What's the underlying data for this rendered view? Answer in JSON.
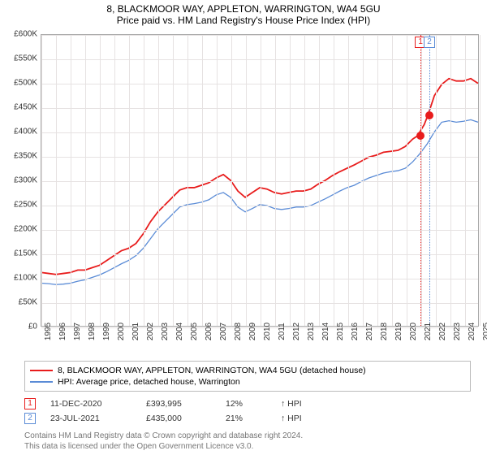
{
  "title": "8, BLACKMOOR WAY, APPLETON, WARRINGTON, WA4 5GU",
  "subtitle": "Price paid vs. HM Land Registry's House Price Index (HPI)",
  "chart": {
    "type": "line",
    "background_color": "#ffffff",
    "grid_color": "#e6e2e2",
    "border_color": "#aaaaaa",
    "title_fontsize": 12,
    "label_fontsize": 10,
    "y": {
      "min": 0,
      "max": 600000,
      "step": 50000,
      "prefix": "£",
      "suffix": "K",
      "divisor": 1000
    },
    "x": {
      "min": 1995,
      "max": 2025,
      "step": 1
    },
    "series": [
      {
        "name": "8, BLACKMOOR WAY, APPLETON, WARRINGTON, WA4 5GU (detached house)",
        "color": "#e81c1c",
        "line_width": 1.8,
        "points": [
          [
            1995,
            110000
          ],
          [
            1995.5,
            108000
          ],
          [
            1996,
            106000
          ],
          [
            1996.5,
            108000
          ],
          [
            1997,
            110000
          ],
          [
            1997.5,
            115000
          ],
          [
            1998,
            115000
          ],
          [
            1998.5,
            120000
          ],
          [
            1999,
            125000
          ],
          [
            1999.5,
            135000
          ],
          [
            2000,
            145000
          ],
          [
            2000.5,
            155000
          ],
          [
            2001,
            160000
          ],
          [
            2001.5,
            170000
          ],
          [
            2002,
            190000
          ],
          [
            2002.5,
            215000
          ],
          [
            2003,
            235000
          ],
          [
            2003.5,
            250000
          ],
          [
            2004,
            265000
          ],
          [
            2004.5,
            280000
          ],
          [
            2005,
            285000
          ],
          [
            2005.5,
            285000
          ],
          [
            2006,
            290000
          ],
          [
            2006.5,
            295000
          ],
          [
            2007,
            305000
          ],
          [
            2007.5,
            312000
          ],
          [
            2008,
            300000
          ],
          [
            2008.5,
            278000
          ],
          [
            2009,
            265000
          ],
          [
            2009.5,
            275000
          ],
          [
            2010,
            285000
          ],
          [
            2010.5,
            282000
          ],
          [
            2011,
            275000
          ],
          [
            2011.5,
            272000
          ],
          [
            2012,
            275000
          ],
          [
            2012.5,
            278000
          ],
          [
            2013,
            278000
          ],
          [
            2013.5,
            282000
          ],
          [
            2014,
            292000
          ],
          [
            2014.5,
            300000
          ],
          [
            2015,
            310000
          ],
          [
            2015.5,
            318000
          ],
          [
            2016,
            325000
          ],
          [
            2016.5,
            332000
          ],
          [
            2017,
            340000
          ],
          [
            2017.5,
            348000
          ],
          [
            2018,
            352000
          ],
          [
            2018.5,
            358000
          ],
          [
            2019,
            360000
          ],
          [
            2019.5,
            362000
          ],
          [
            2020,
            370000
          ],
          [
            2020.5,
            385000
          ],
          [
            2020.95,
            393995
          ],
          [
            2021,
            400000
          ],
          [
            2021.3,
            415000
          ],
          [
            2021.56,
            435000
          ],
          [
            2022,
            475000
          ],
          [
            2022.5,
            498000
          ],
          [
            2023,
            510000
          ],
          [
            2023.5,
            505000
          ],
          [
            2024,
            505000
          ],
          [
            2024.5,
            510000
          ],
          [
            2025,
            500000
          ]
        ]
      },
      {
        "name": "HPI: Average price, detached house, Warrington",
        "color": "#5a8bd6",
        "line_width": 1.3,
        "points": [
          [
            1995,
            88000
          ],
          [
            1995.5,
            87000
          ],
          [
            1996,
            85000
          ],
          [
            1996.5,
            86000
          ],
          [
            1997,
            88000
          ],
          [
            1997.5,
            92000
          ],
          [
            1998,
            95000
          ],
          [
            1998.5,
            100000
          ],
          [
            1999,
            105000
          ],
          [
            1999.5,
            112000
          ],
          [
            2000,
            120000
          ],
          [
            2000.5,
            128000
          ],
          [
            2001,
            135000
          ],
          [
            2001.5,
            145000
          ],
          [
            2002,
            160000
          ],
          [
            2002.5,
            180000
          ],
          [
            2003,
            200000
          ],
          [
            2003.5,
            215000
          ],
          [
            2004,
            230000
          ],
          [
            2004.5,
            245000
          ],
          [
            2005,
            250000
          ],
          [
            2005.5,
            252000
          ],
          [
            2006,
            255000
          ],
          [
            2006.5,
            260000
          ],
          [
            2007,
            270000
          ],
          [
            2007.5,
            275000
          ],
          [
            2008,
            265000
          ],
          [
            2008.5,
            245000
          ],
          [
            2009,
            235000
          ],
          [
            2009.5,
            242000
          ],
          [
            2010,
            250000
          ],
          [
            2010.5,
            248000
          ],
          [
            2011,
            242000
          ],
          [
            2011.5,
            240000
          ],
          [
            2012,
            242000
          ],
          [
            2012.5,
            245000
          ],
          [
            2013,
            245000
          ],
          [
            2013.5,
            248000
          ],
          [
            2014,
            255000
          ],
          [
            2014.5,
            262000
          ],
          [
            2015,
            270000
          ],
          [
            2015.5,
            278000
          ],
          [
            2016,
            285000
          ],
          [
            2016.5,
            290000
          ],
          [
            2017,
            298000
          ],
          [
            2017.5,
            305000
          ],
          [
            2018,
            310000
          ],
          [
            2018.5,
            315000
          ],
          [
            2019,
            318000
          ],
          [
            2019.5,
            320000
          ],
          [
            2020,
            325000
          ],
          [
            2020.5,
            338000
          ],
          [
            2021,
            355000
          ],
          [
            2021.5,
            375000
          ],
          [
            2022,
            400000
          ],
          [
            2022.5,
            420000
          ],
          [
            2023,
            423000
          ],
          [
            2023.5,
            420000
          ],
          [
            2024,
            422000
          ],
          [
            2024.5,
            425000
          ],
          [
            2025,
            420000
          ]
        ]
      }
    ],
    "markers": [
      {
        "id": "1",
        "x": 2020.95,
        "y": 393995,
        "color": "#e81c1c"
      },
      {
        "id": "2",
        "x": 2021.56,
        "y": 435000,
        "color": "#5a8bd6"
      }
    ]
  },
  "legend": {
    "items": [
      {
        "label": "8, BLACKMOOR WAY, APPLETON, WARRINGTON, WA4 5GU (detached house)",
        "color": "#e81c1c"
      },
      {
        "label": "HPI: Average price, detached house, Warrington",
        "color": "#5a8bd6"
      }
    ]
  },
  "sales": [
    {
      "id": "1",
      "color": "#e81c1c",
      "date": "11-DEC-2020",
      "price": "£393,995",
      "delta": "12%",
      "delta_label": "HPI"
    },
    {
      "id": "2",
      "color": "#5a8bd6",
      "date": "23-JUL-2021",
      "price": "£435,000",
      "delta": "21%",
      "delta_label": "HPI"
    }
  ],
  "attribution": {
    "line1": "Contains HM Land Registry data © Crown copyright and database right 2024.",
    "line2": "This data is licensed under the Open Government Licence v3.0."
  }
}
